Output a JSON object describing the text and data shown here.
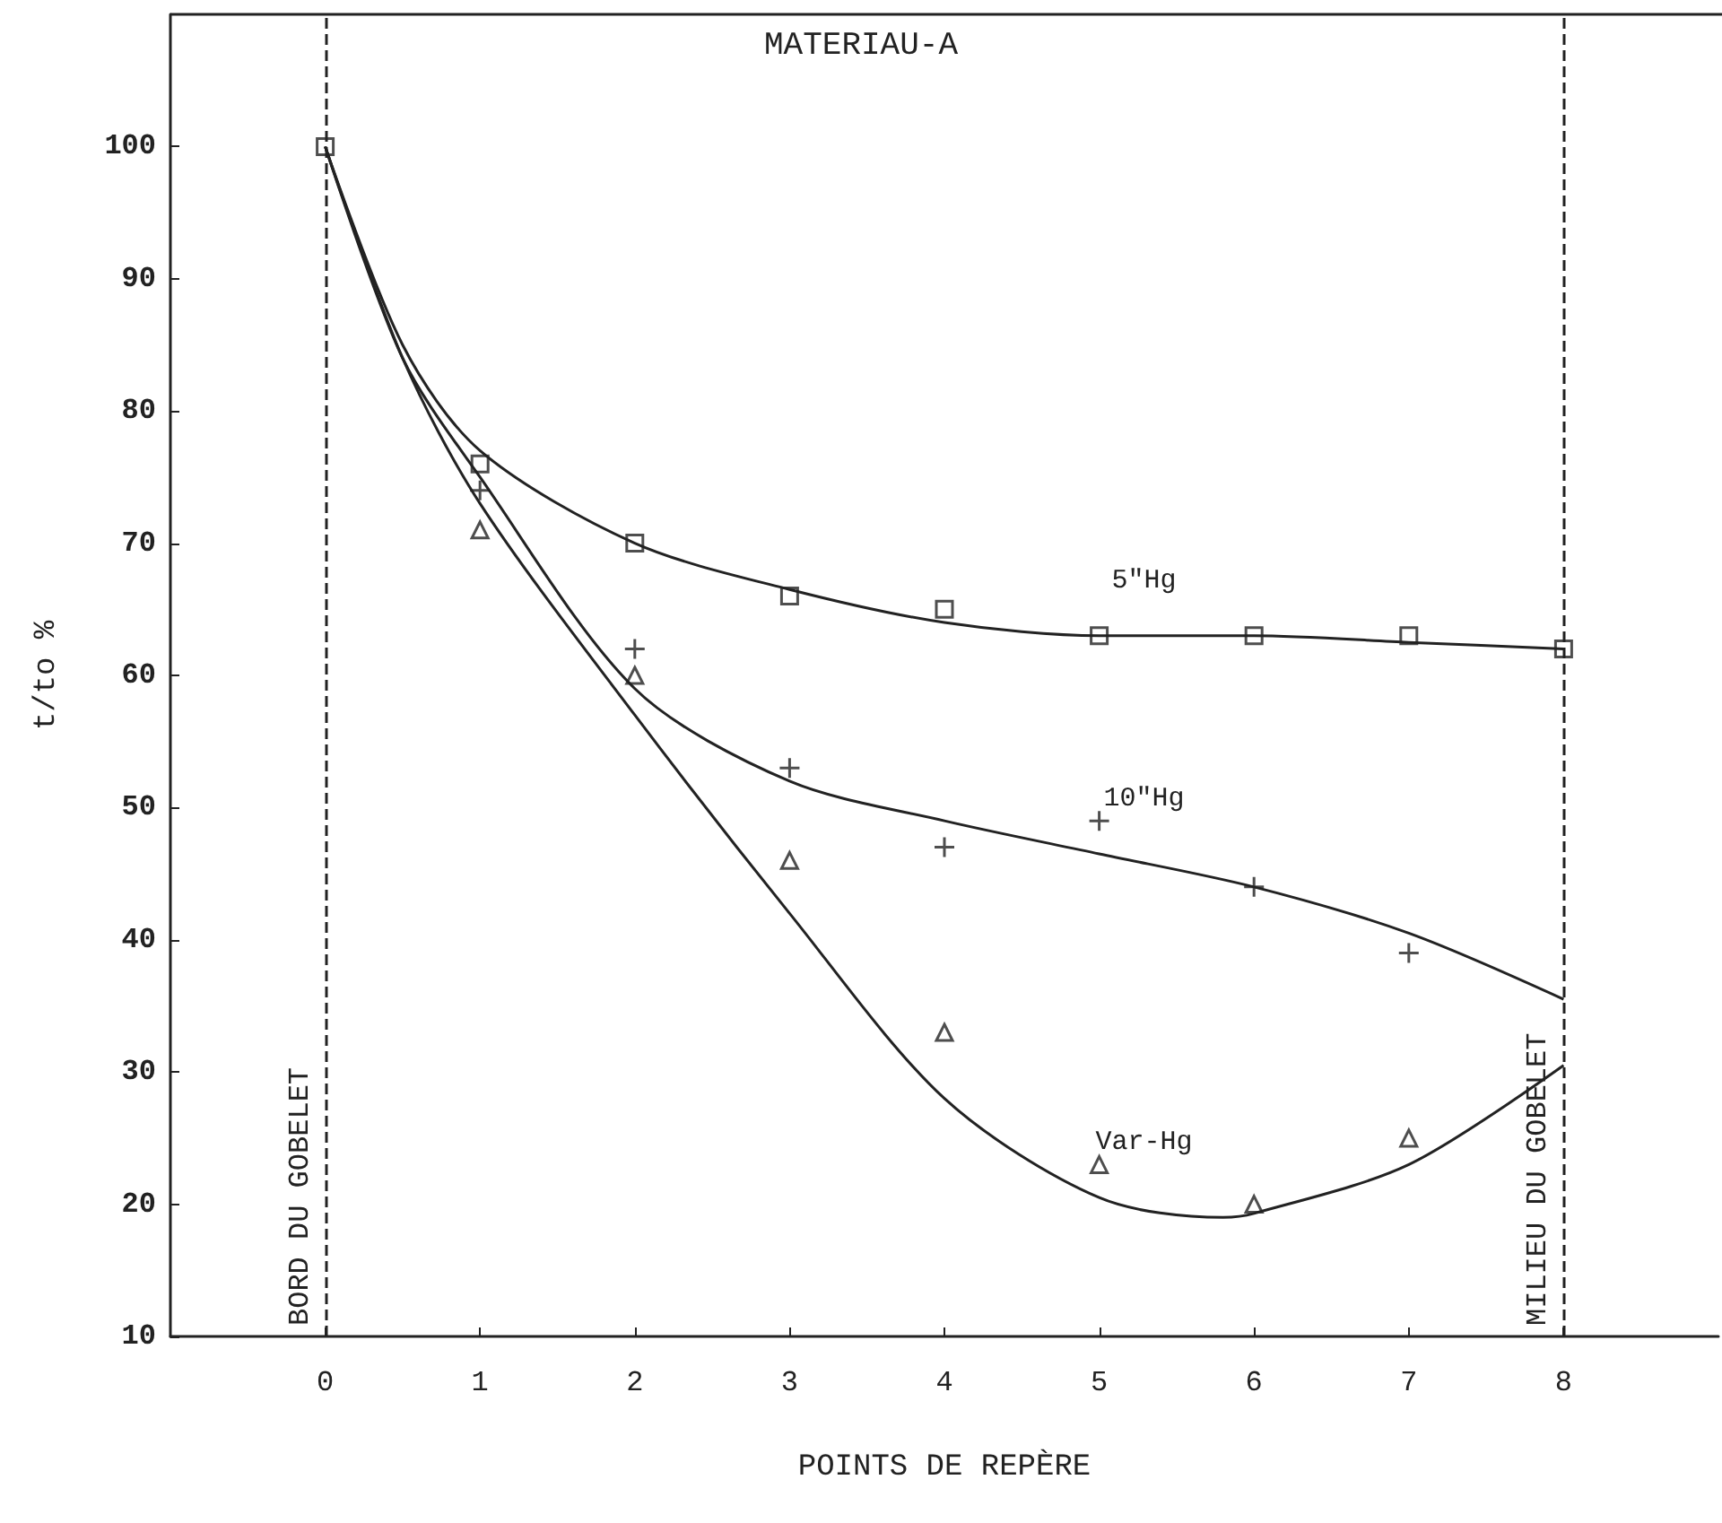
{
  "chart_data": {
    "type": "scatter",
    "title": "MATERIAU-A",
    "xlabel": "POINTS DE REPÈRE",
    "ylabel": "t/to %",
    "xlim": [
      -1,
      9
    ],
    "xticks": [
      0,
      1,
      2,
      3,
      4,
      5,
      6,
      7,
      8
    ],
    "ylim": [
      10,
      110
    ],
    "yticks": [
      10,
      20,
      30,
      40,
      50,
      60,
      70,
      80,
      90,
      100
    ],
    "grid": false,
    "legend": false,
    "series": [
      {
        "type": "scatter",
        "marker": "square",
        "color": "#222222",
        "x": [
          0,
          1,
          2,
          3,
          4,
          5,
          6,
          7,
          8
        ],
        "values": [
          100,
          76,
          70,
          66,
          65,
          63,
          63,
          63,
          62
        ]
      },
      {
        "type": "scatter",
        "marker": "cross",
        "color": "#222222",
        "x": [
          1,
          2,
          3,
          4,
          5,
          6,
          7
        ],
        "values": [
          74,
          62,
          53,
          47,
          49,
          44,
          39
        ]
      },
      {
        "type": "scatter",
        "marker": "triangle",
        "color": "#222222",
        "x": [
          1,
          2,
          3,
          4,
          5,
          6,
          7
        ],
        "values": [
          71,
          60,
          46,
          33,
          23,
          20,
          25
        ]
      },
      {
        "type": "line",
        "name": "5\"Hg",
        "color": "#222222",
        "marker": "none",
        "x": [
          0,
          0.5,
          1,
          2,
          3,
          4,
          5,
          6,
          7,
          8
        ],
        "values": [
          100,
          85,
          77,
          70,
          66.5,
          64,
          63,
          63,
          62.5,
          62
        ]
      },
      {
        "type": "line",
        "name": "10\"Hg",
        "color": "#222222",
        "marker": "none",
        "x": [
          0,
          0.5,
          1,
          2,
          3,
          4,
          5,
          6,
          7,
          8
        ],
        "values": [
          100,
          84,
          75,
          59,
          52,
          49,
          46.5,
          44,
          40.5,
          35.5
        ]
      },
      {
        "type": "line",
        "name": "Var-Hg",
        "color": "#222222",
        "marker": "none",
        "x": [
          0,
          0.5,
          1,
          2,
          3,
          4,
          5,
          5.8,
          6,
          7,
          8
        ],
        "values": [
          100,
          84,
          73,
          57,
          42,
          28,
          20.5,
          19,
          19.3,
          23,
          30.5
        ]
      }
    ],
    "ref_lines": [
      {
        "axis": "x",
        "value": 0,
        "label": "BORD DU GOBELET",
        "line_style": "dashed"
      },
      {
        "axis": "x",
        "value": 8,
        "label": "MILIEU DU GOBELET",
        "line_style": "dashed"
      }
    ]
  }
}
